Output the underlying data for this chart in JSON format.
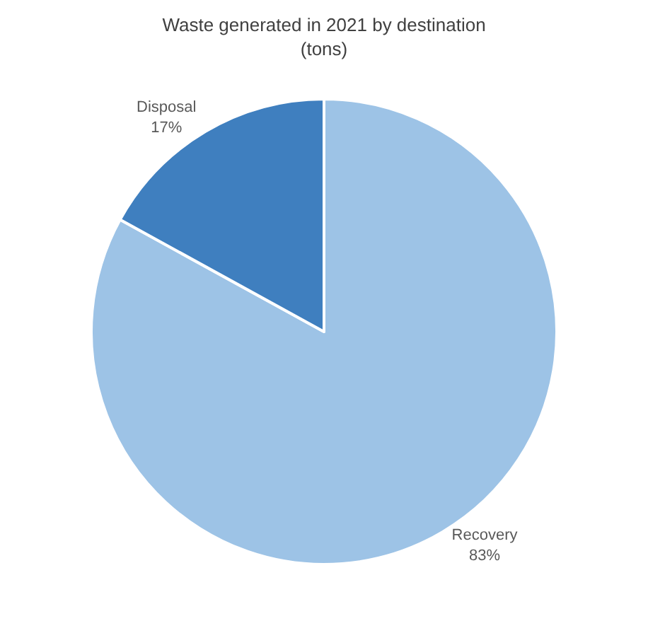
{
  "chart_data": {
    "type": "pie",
    "title": "Waste generated in 2021 by destination\n(tons)",
    "categories": [
      "Recovery",
      "Disposal"
    ],
    "values": [
      83,
      17
    ],
    "value_labels": [
      "83%",
      "17%"
    ],
    "colors": [
      "#9dc3e6",
      "#3f7fbf"
    ],
    "legend": false
  }
}
